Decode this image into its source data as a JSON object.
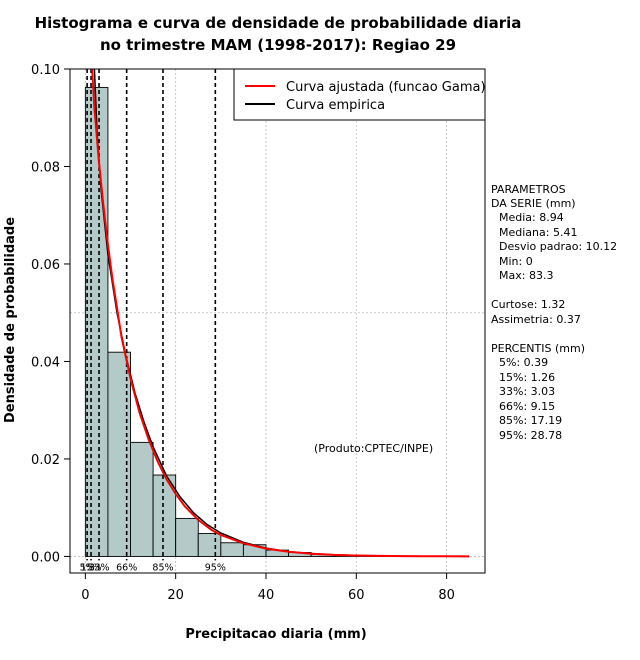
{
  "chart_data": {
    "type": "histogram",
    "title_line1": "Histograma e curva de densidade de probabilidade diaria",
    "title_line2": "no trimestre MAM (1998-2017): Regiao 29",
    "xlabel": "Precipitacao diaria (mm)",
    "ylabel": "Densidade de probabilidade",
    "xlim": [
      -3.4,
      88.5
    ],
    "ylim": [
      -0.0034,
      0.1
    ],
    "x_ticks": [
      0,
      20,
      40,
      60,
      80
    ],
    "x_tick_labels": [
      "0",
      "20",
      "40",
      "60",
      "80"
    ],
    "y_ticks": [
      0.0,
      0.02,
      0.04,
      0.06,
      0.08,
      0.1
    ],
    "y_tick_labels": [
      "0.00",
      "0.02",
      "0.04",
      "0.06",
      "0.08",
      "0.10"
    ],
    "grid_x": [
      0,
      20,
      40,
      60,
      80
    ],
    "grid_y": [
      0.0,
      0.05
    ],
    "bins": [
      {
        "x0": 0,
        "x1": 5,
        "density": 0.0962
      },
      {
        "x0": 5,
        "x1": 10,
        "density": 0.0419
      },
      {
        "x0": 10,
        "x1": 15,
        "density": 0.0234
      },
      {
        "x0": 15,
        "x1": 20,
        "density": 0.0167
      },
      {
        "x0": 20,
        "x1": 25,
        "density": 0.0078
      },
      {
        "x0": 25,
        "x1": 30,
        "density": 0.0047
      },
      {
        "x0": 30,
        "x1": 35,
        "density": 0.0028
      },
      {
        "x0": 35,
        "x1": 40,
        "density": 0.0024
      },
      {
        "x0": 40,
        "x1": 45,
        "density": 0.0013
      },
      {
        "x0": 45,
        "x1": 50,
        "density": 0.0008
      },
      {
        "x0": 50,
        "x1": 55,
        "density": 0.0004
      },
      {
        "x0": 55,
        "x1": 60,
        "density": 0.0003
      },
      {
        "x0": 60,
        "x1": 65,
        "density": 0.0002
      },
      {
        "x0": 65,
        "x1": 70,
        "density": 0.0001
      },
      {
        "x0": 70,
        "x1": 75,
        "density": 0.0001
      },
      {
        "x0": 75,
        "x1": 80,
        "density": 0.0
      },
      {
        "x0": 80,
        "x1": 85,
        "density": 0.0
      }
    ],
    "fitted_curve": {
      "name": "Curva ajustada (funcao Gama)",
      "color": "#ff0000",
      "x": [
        1.5,
        2,
        3,
        4,
        5,
        6,
        7,
        8,
        10,
        12,
        14,
        16,
        18,
        20,
        22,
        25,
        28,
        30,
        35,
        40,
        45,
        50,
        55,
        60,
        65,
        70,
        75,
        80,
        85
      ],
      "y": [
        0.1,
        0.092,
        0.081,
        0.072,
        0.064,
        0.057,
        0.051,
        0.045,
        0.0365,
        0.0295,
        0.024,
        0.0195,
        0.0158,
        0.0128,
        0.0103,
        0.0075,
        0.0054,
        0.0044,
        0.0027,
        0.0016,
        0.00095,
        0.00055,
        0.00032,
        0.00019,
        0.00011,
        6e-05,
        3e-05,
        2e-05,
        1e-05
      ]
    },
    "empirical_curve": {
      "name": "Curva empirica",
      "color": "#000000",
      "x": [
        2.0,
        2.6,
        3.5,
        5,
        7,
        9,
        11,
        13,
        15,
        18,
        21,
        24,
        27,
        30,
        35,
        40,
        45,
        50,
        55,
        60,
        65,
        70,
        75,
        80,
        85
      ],
      "y": [
        0.1,
        0.087,
        0.075,
        0.062,
        0.05,
        0.041,
        0.0335,
        0.0275,
        0.0225,
        0.0165,
        0.0122,
        0.0089,
        0.0065,
        0.0048,
        0.0029,
        0.0017,
        0.001,
        0.0006,
        0.00035,
        0.0002,
        0.00012,
        7e-05,
        4e-05,
        2e-05,
        1e-05
      ]
    },
    "percentile_lines": [
      {
        "label": "5%",
        "x": 0.39
      },
      {
        "label": "15%",
        "x": 1.26
      },
      {
        "label": "33%",
        "x": 3.03
      },
      {
        "label": "66%",
        "x": 9.15
      },
      {
        "label": "85%",
        "x": 17.19
      },
      {
        "label": "95%",
        "x": 28.78
      }
    ],
    "legend": {
      "position": "top-right",
      "entries": [
        {
          "label": "Curva ajustada (funcao Gama)",
          "color": "#ff0000"
        },
        {
          "label": "Curva empirica",
          "color": "#000000"
        }
      ]
    },
    "credit": "(Produto:CPTEC/INPE)",
    "side_panel": {
      "param_header_1": "PARAMETROS",
      "param_header_2": "DA SERIE (mm)",
      "media": "Media: 8.94",
      "mediana": "Mediana: 5.41",
      "desvio": "Desvio padrao: 10.12",
      "min": "Min: 0",
      "max": "Max: 83.3",
      "curtose": "Curtose: 1.32",
      "assimetria": "Assimetria: 0.37",
      "percentis_header": "PERCENTIS (mm)",
      "p5": "5%: 0.39",
      "p15": "15%: 1.26",
      "p33": "33%: 3.03",
      "p66": "66%: 9.15",
      "p85": "85%: 17.19",
      "p95": "95%: 28.78"
    },
    "colors": {
      "bar_fill": "#b4cac8",
      "grid": "#bbbbbb",
      "fitted": "#ff0000",
      "empirical": "#000000"
    }
  }
}
